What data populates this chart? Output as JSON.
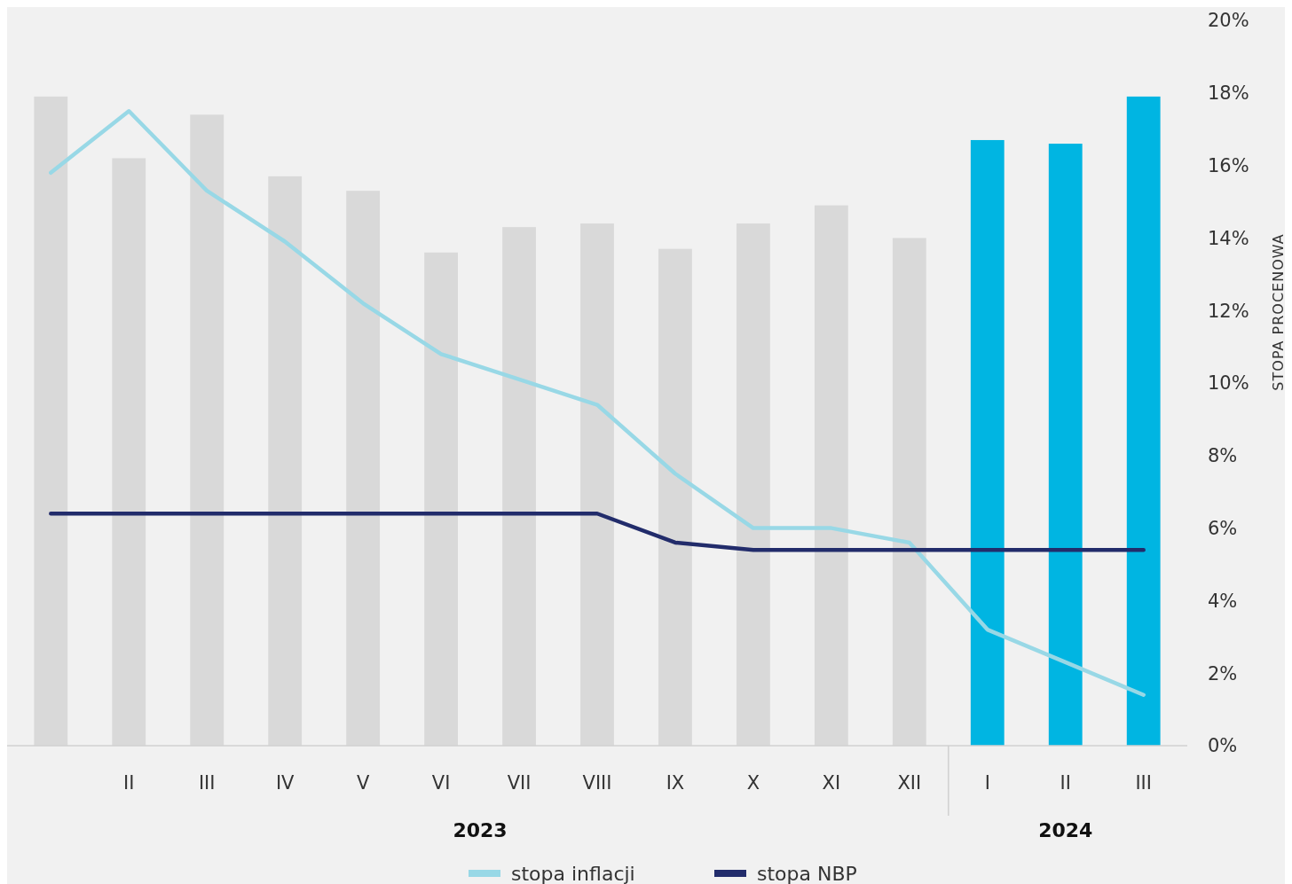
{
  "chart_data": {
    "type": "bar",
    "ylabel": "STOPA PROCENOWA",
    "categories": [
      null,
      "II",
      "III",
      "IV",
      "V",
      "VI",
      "VII",
      "VIII",
      "IX",
      "X",
      "XI",
      "XII",
      "I",
      "II",
      "III"
    ],
    "series": [
      {
        "colors": [
          "#d9d9d9",
          "#d9d9d9",
          "#d9d9d9",
          "#d9d9d9",
          "#d9d9d9",
          "#d9d9d9",
          "#d9d9d9",
          "#d9d9d9",
          "#d9d9d9",
          "#d9d9d9",
          "#d9d9d9",
          "#d9d9d9",
          "#00b5e2",
          "#00b5e2",
          "#00b5e2"
        ],
        "values": [
          17.9,
          16.2,
          17.4,
          15.7,
          15.3,
          13.6,
          14.3,
          14.4,
          13.7,
          14.4,
          14.9,
          14.0,
          16.7,
          16.6,
          17.9
        ]
      },
      {
        "type": "line",
        "name": "stopa inflacji",
        "color": "#98d8e6",
        "values": [
          15.8,
          17.5,
          15.3,
          13.9,
          12.2,
          10.8,
          10.1,
          9.4,
          7.5,
          6.0,
          6.0,
          5.6,
          3.2,
          2.3,
          1.4
        ]
      },
      {
        "type": "line",
        "name": "stopa NBP",
        "color": "#222c6b",
        "values": [
          6.4,
          6.4,
          6.4,
          6.4,
          6.4,
          6.4,
          6.4,
          6.4,
          5.6,
          5.4,
          5.4,
          5.4,
          5.4,
          5.4,
          5.4
        ]
      }
    ],
    "ylim": [
      0,
      20
    ],
    "yticks": [
      {
        "value": 0,
        "label": "0%"
      },
      {
        "value": 2,
        "label": "2%"
      },
      {
        "value": 4,
        "label": "4%"
      },
      {
        "value": 6,
        "label": "6%"
      },
      {
        "value": 8,
        "label": "8%"
      },
      {
        "value": 10,
        "label": "10%"
      },
      {
        "value": 12,
        "label": "12%"
      },
      {
        "value": 14,
        "label": "14%"
      },
      {
        "value": 16,
        "label": "16%"
      },
      {
        "value": 18,
        "label": "18%"
      },
      {
        "value": 20,
        "label": "20%"
      }
    ],
    "annotations": [
      "2023",
      "2024"
    ],
    "legend": "bottom"
  }
}
